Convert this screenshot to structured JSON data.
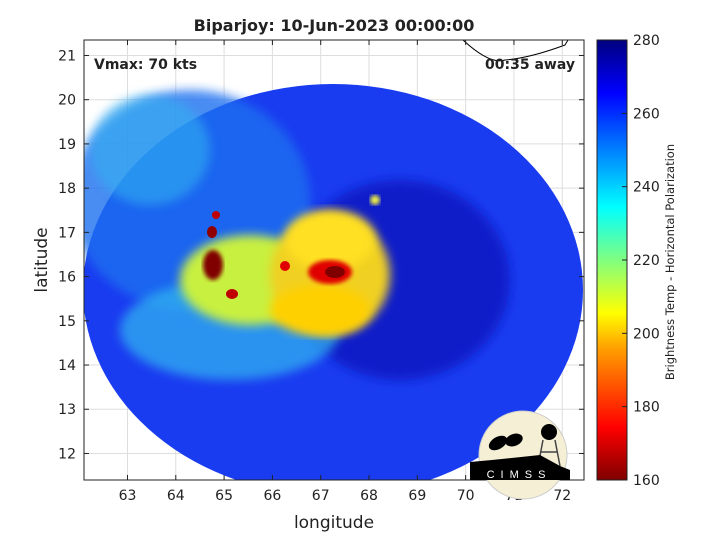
{
  "chart_data": {
    "type": "heatmap",
    "title": "Biparjoy: 10-Jun-2023 00:00:00",
    "xlabel": "longitude",
    "ylabel": "latitude",
    "xlim": [
      62.1,
      72.45
    ],
    "ylim": [
      11.4,
      21.35
    ],
    "xticks": [
      63,
      64,
      65,
      66,
      67,
      68,
      69,
      70,
      71,
      72
    ],
    "yticks": [
      12,
      13,
      14,
      15,
      16,
      17,
      18,
      19,
      20,
      21
    ],
    "grid": true,
    "colorbar": {
      "label": "Brightness Temp - Horizontal Polarization",
      "range": [
        160,
        280
      ],
      "ticks": [
        160,
        180,
        200,
        220,
        240,
        260,
        280
      ],
      "colormap": "jet"
    },
    "annotations": {
      "vmax": "Vmax: 70 kts",
      "time_offset": "00:35 away"
    }
  },
  "logo": {
    "text": "CIMSS"
  }
}
